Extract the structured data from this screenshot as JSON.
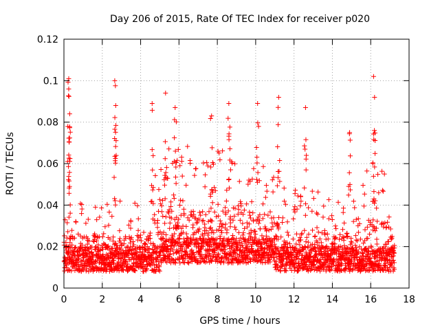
{
  "chart_data": {
    "type": "scatter",
    "title": "Day 206 of 2015, Rate Of TEC Index for receiver p020",
    "xlabel": "GPS time / hours",
    "ylabel": "ROTI / TECUs",
    "xlim": [
      0,
      18
    ],
    "ylim": [
      0,
      0.12
    ],
    "grid": true,
    "x_ticks": [
      0,
      2,
      4,
      6,
      8,
      10,
      12,
      14,
      16,
      18
    ],
    "x_tick_labels": [
      "0",
      "2",
      "4",
      "6",
      "8",
      "10",
      "12",
      "14",
      "16",
      "18"
    ],
    "y_ticks": [
      0,
      0.02,
      0.04,
      0.06,
      0.08,
      0.1,
      0.12
    ],
    "y_tick_labels": [
      "0",
      "0.02",
      "0.04",
      "0.06",
      "0.08",
      "0.1",
      "0.12"
    ],
    "series": [
      {
        "name": "ROTI",
        "color": "#ff0000",
        "marker": "plus",
        "x_range": [
          0,
          17.25
        ],
        "notable_points": [
          {
            "x": 0.25,
            "y": 0.101
          },
          {
            "x": 0.25,
            "y": 0.096
          },
          {
            "x": 0.3,
            "y": 0.084
          },
          {
            "x": 2.65,
            "y": 0.1
          },
          {
            "x": 2.7,
            "y": 0.088
          },
          {
            "x": 4.6,
            "y": 0.089
          },
          {
            "x": 5.3,
            "y": 0.094
          },
          {
            "x": 5.8,
            "y": 0.087
          },
          {
            "x": 7.7,
            "y": 0.083
          },
          {
            "x": 8.6,
            "y": 0.089
          },
          {
            "x": 10.1,
            "y": 0.089
          },
          {
            "x": 11.2,
            "y": 0.092
          },
          {
            "x": 12.6,
            "y": 0.087
          },
          {
            "x": 14.9,
            "y": 0.075
          },
          {
            "x": 16.15,
            "y": 0.102
          },
          {
            "x": 16.2,
            "y": 0.092
          }
        ]
      }
    ]
  }
}
